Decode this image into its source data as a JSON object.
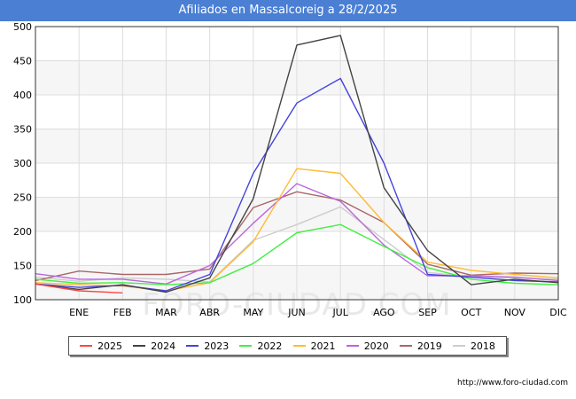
{
  "chart_data": {
    "type": "line",
    "title": "Afiliados en Massalcoreig a 28/2/2025",
    "xlabel": "",
    "ylabel": "",
    "categories": [
      "",
      "ENE",
      "FEB",
      "MAR",
      "ABR",
      "MAY",
      "JUN",
      "JUL",
      "AGO",
      "SEP",
      "OCT",
      "NOV",
      "DIC"
    ],
    "ylim": [
      100,
      500
    ],
    "yticks": [
      100,
      150,
      200,
      250,
      300,
      350,
      400,
      450,
      500
    ],
    "watermark": "FORO-CIUDAD.COM",
    "legend_position": "bottom",
    "series": [
      {
        "name": "2025",
        "color": "#ff4444",
        "values": [
          123,
          113,
          110,
          null,
          null,
          null,
          null,
          null,
          null,
          null,
          null,
          null,
          null
        ]
      },
      {
        "name": "2024",
        "color": "#444444",
        "values": [
          123,
          115,
          122,
          111,
          132,
          248,
          473,
          487,
          264,
          172,
          122,
          130,
          125
        ]
      },
      {
        "name": "2023",
        "color": "#4444dd",
        "values": [
          123,
          118,
          121,
          113,
          137,
          285,
          388,
          424,
          300,
          137,
          133,
          128,
          126
        ]
      },
      {
        "name": "2022",
        "color": "#44ee44",
        "values": [
          130,
          124,
          125,
          122,
          125,
          153,
          198,
          210,
          178,
          147,
          130,
          124,
          122
        ]
      },
      {
        "name": "2021",
        "color": "#ffbb33",
        "values": [
          125,
          122,
          120,
          113,
          125,
          185,
          292,
          285,
          213,
          155,
          143,
          137,
          132
        ]
      },
      {
        "name": "2020",
        "color": "#bb66dd",
        "values": [
          138,
          130,
          130,
          123,
          150,
          212,
          270,
          244,
          180,
          135,
          135,
          133,
          128
        ]
      },
      {
        "name": "2019",
        "color": "#aa6666",
        "values": [
          128,
          142,
          137,
          137,
          145,
          235,
          258,
          246,
          213,
          152,
          136,
          139,
          138
        ]
      },
      {
        "name": "2018",
        "color": "#cccccc",
        "values": [
          133,
          127,
          132,
          130,
          126,
          187,
          210,
          236,
          188,
          140,
          133,
          132,
          130
        ]
      }
    ]
  },
  "footer_url": "http://www.foro-ciudad.com"
}
